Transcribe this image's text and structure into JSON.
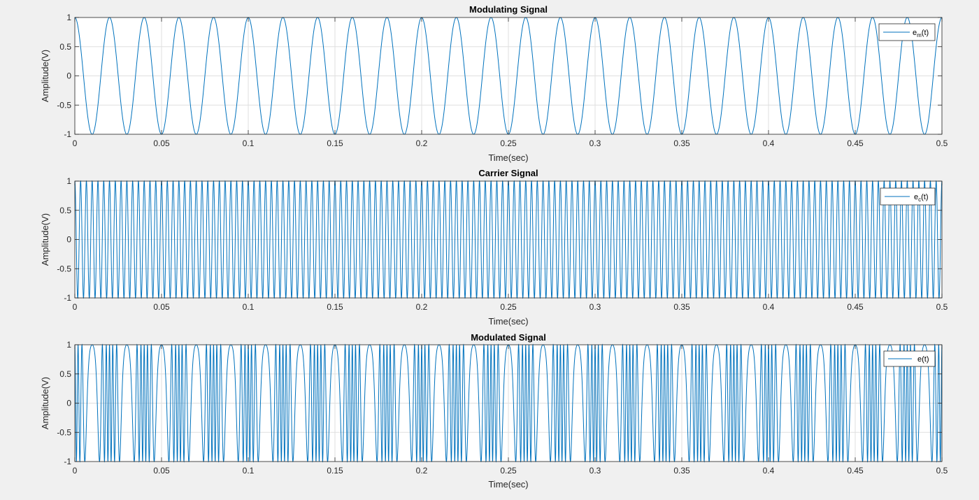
{
  "colors": {
    "figure_background": "#f0f0f0",
    "axes_background": "#ffffff",
    "signal_line": "#0072bd",
    "grid": "#dfdfdf",
    "axis_box": "#262626"
  },
  "chart_data": [
    {
      "type": "line",
      "title": "Modulating Signal",
      "xlabel": "Time(sec)",
      "ylabel": "Amplitude(V)",
      "xlim": [
        0,
        0.5
      ],
      "ylim": [
        -1,
        1
      ],
      "xticks": [
        "0",
        "0.05",
        "0.1",
        "0.15",
        "0.2",
        "0.25",
        "0.3",
        "0.35",
        "0.4",
        "0.45",
        "0.5"
      ],
      "yticks": [
        "-1",
        "-0.5",
        "0",
        "0.5",
        "1"
      ],
      "grid": true,
      "legend_position": "top-right",
      "series": [
        {
          "name": "e",
          "name_subscript": "m",
          "name_suffix": "(t)",
          "function": "cos",
          "amplitude": 1,
          "frequency_hz": 50
        }
      ]
    },
    {
      "type": "line",
      "title": "Carrier Signal",
      "xlabel": "Time(sec)",
      "ylabel": "Amplitude(V)",
      "xlim": [
        0,
        0.5
      ],
      "ylim": [
        -1,
        1
      ],
      "xticks": [
        "0",
        "0.05",
        "0.1",
        "0.15",
        "0.2",
        "0.25",
        "0.3",
        "0.35",
        "0.4",
        "0.45",
        "0.5"
      ],
      "yticks": [
        "-1",
        "-0.5",
        "0",
        "0.5",
        "1"
      ],
      "grid": true,
      "legend_position": "top-right",
      "series": [
        {
          "name": "e",
          "name_subscript": "c",
          "name_suffix": "(t)",
          "function": "cos",
          "amplitude": 1,
          "frequency_hz": 300
        }
      ]
    },
    {
      "type": "line",
      "title": "Modulated Signal",
      "xlabel": "Time(sec)",
      "ylabel": "Amplitude(V)",
      "xlim": [
        0,
        0.5
      ],
      "ylim": [
        -1,
        1
      ],
      "xticks": [
        "0",
        "0.05",
        "0.1",
        "0.15",
        "0.2",
        "0.25",
        "0.3",
        "0.35",
        "0.4",
        "0.45",
        "0.5"
      ],
      "yticks": [
        "-1",
        "-0.5",
        "0",
        "0.5",
        "1"
      ],
      "grid": true,
      "legend_position": "top-right",
      "series": [
        {
          "name": "e(t)",
          "name_subscript": "",
          "name_suffix": "",
          "function": "fm",
          "amplitude": 1,
          "carrier_frequency_hz": 300,
          "modulating_frequency_hz": 50,
          "modulation_index": 5
        }
      ]
    }
  ]
}
